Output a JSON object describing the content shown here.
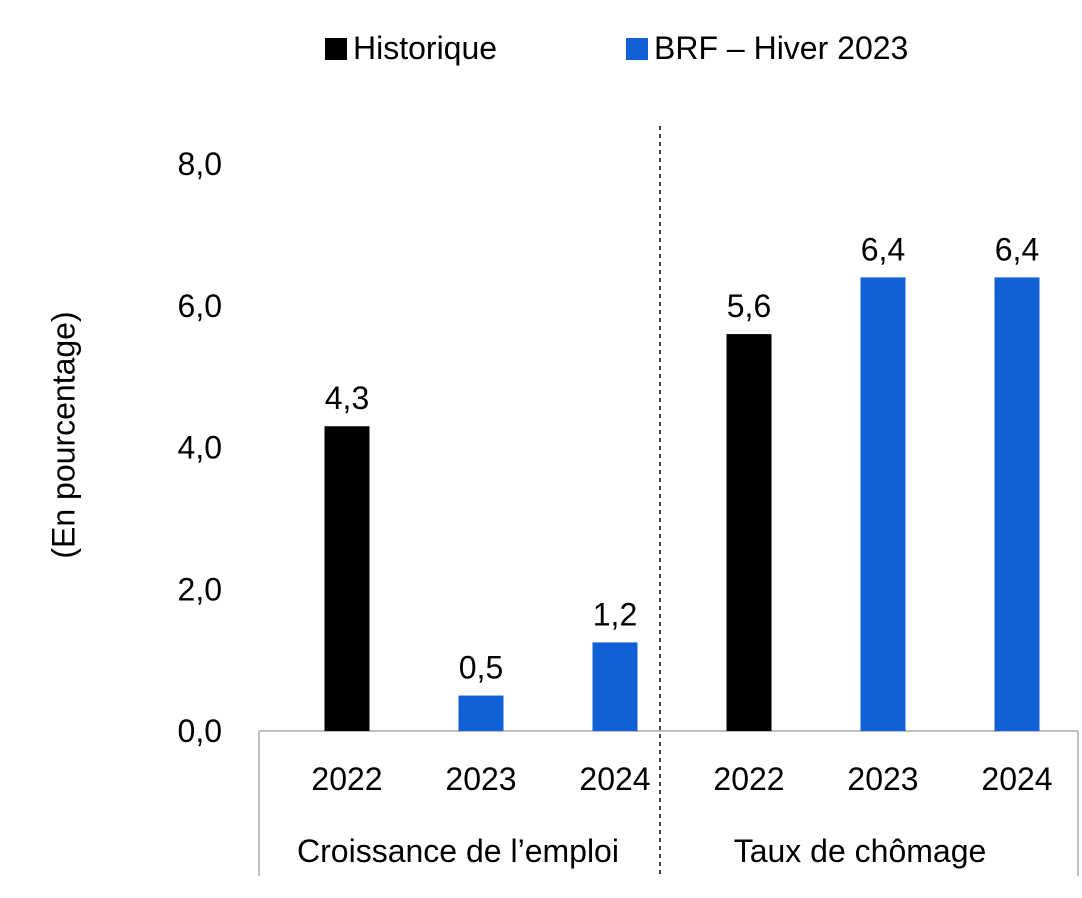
{
  "legend": [
    {
      "label": "Historique",
      "color": "#000000"
    },
    {
      "label": "BRF – Hiver 2023",
      "color": "#1160D6"
    }
  ],
  "chart_data": {
    "type": "bar",
    "title": "",
    "ylabel": "(En pourcentage)",
    "ylim": [
      0,
      8
    ],
    "yticks": [
      "0,0",
      "2,0",
      "4,0",
      "6,0",
      "8,0"
    ],
    "groups": [
      {
        "label": "Croissance de l’emploi",
        "bars": [
          {
            "year": "2022",
            "value": 4.3,
            "label": "4,3",
            "series": "Historique"
          },
          {
            "year": "2023",
            "value": 0.5,
            "label": "0,5",
            "series": "BRF – Hiver 2023"
          },
          {
            "year": "2024",
            "value": 1.25,
            "label": "1,2",
            "series": "BRF – Hiver 2023"
          }
        ]
      },
      {
        "label": "Taux de chômage",
        "bars": [
          {
            "year": "2022",
            "value": 5.6,
            "label": "5,6",
            "series": "Historique"
          },
          {
            "year": "2023",
            "value": 6.4,
            "label": "6,4",
            "series": "BRF – Hiver 2023"
          },
          {
            "year": "2024",
            "value": 6.4,
            "label": "6,4",
            "series": "BRF – Hiver 2023"
          }
        ]
      }
    ],
    "grid": false,
    "legend_position": "top-center"
  }
}
